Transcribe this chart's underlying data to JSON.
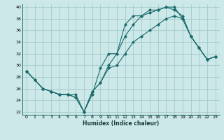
{
  "xlabel": "Humidex (Indice chaleur)",
  "ylabel": "",
  "xlim": [
    -0.5,
    23.5
  ],
  "ylim": [
    21.5,
    40.5
  ],
  "yticks": [
    22,
    24,
    26,
    28,
    30,
    32,
    34,
    36,
    38,
    40
  ],
  "xticks": [
    0,
    1,
    2,
    3,
    4,
    5,
    6,
    7,
    8,
    9,
    10,
    11,
    12,
    13,
    14,
    15,
    16,
    17,
    18,
    19,
    20,
    21,
    22,
    23
  ],
  "bg_color": "#cce8e8",
  "grid_color": "#9ec4c4",
  "line_color": "#1a6b6b",
  "lines": [
    {
      "x": [
        0,
        1,
        2,
        3,
        4,
        5,
        6,
        7,
        8,
        9,
        10,
        11,
        12,
        13,
        14,
        15,
        16,
        17,
        18,
        19,
        20,
        21,
        22,
        23
      ],
      "y": [
        29,
        27.5,
        26,
        25.5,
        25,
        25,
        25,
        22,
        25,
        29.5,
        32,
        32,
        37,
        38.5,
        38.5,
        39.5,
        39.5,
        40,
        39.5,
        38.5,
        35,
        33,
        31,
        31.5
      ]
    },
    {
      "x": [
        0,
        1,
        2,
        3,
        4,
        5,
        6,
        7,
        8,
        9,
        10,
        11,
        12,
        13,
        14,
        15,
        16,
        17,
        18,
        19,
        20,
        21,
        22,
        23
      ],
      "y": [
        29,
        27.5,
        26,
        25.5,
        25,
        25,
        24.5,
        22,
        25.5,
        27,
        30,
        32,
        35,
        37,
        38.5,
        39,
        39.5,
        40,
        40,
        38,
        35,
        33,
        31,
        31.5
      ]
    },
    {
      "x": [
        0,
        1,
        2,
        3,
        4,
        5,
        6,
        7,
        8,
        9,
        10,
        11,
        12,
        13,
        14,
        15,
        16,
        17,
        18,
        19,
        20,
        21,
        22,
        23
      ],
      "y": [
        29,
        27.5,
        26,
        25.5,
        25,
        25,
        24.5,
        22,
        25.5,
        27,
        29.5,
        30,
        32,
        34,
        35,
        36,
        37,
        38,
        38.5,
        38,
        35,
        33,
        31,
        31.5
      ]
    }
  ]
}
